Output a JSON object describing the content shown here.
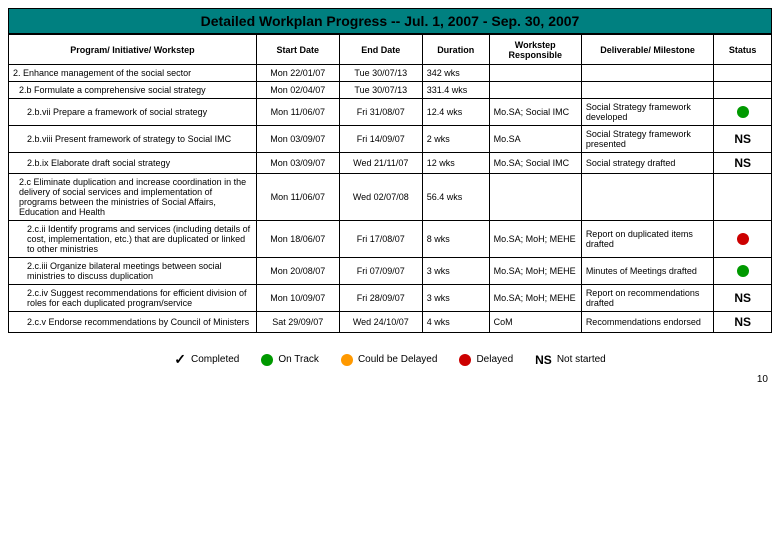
{
  "title": "Detailed Workplan Progress -- Jul. 1, 2007 - Sep. 30, 2007",
  "columns": {
    "program": "Program/ Initiative/ Workstep",
    "start": "Start Date",
    "end": "End Date",
    "duration": "Duration",
    "responsible": "Workstep Responsible",
    "deliverable": "Deliverable/ Milestone",
    "status": "Status"
  },
  "status_colors": {
    "green": "#009900",
    "orange": "#ff9900",
    "red": "#cc0000"
  },
  "rows": [
    {
      "program": "2. Enhance management of the social sector",
      "indent": 0,
      "start": "Mon 22/01/07",
      "end": "Tue 30/07/13",
      "duration": "342 wks",
      "responsible": "",
      "deliverable": "",
      "status_type": ""
    },
    {
      "program": "2.b Formulate a comprehensive social strategy",
      "indent": 1,
      "start": "Mon 02/04/07",
      "end": "Tue 30/07/13",
      "duration": "331.4 wks",
      "responsible": "",
      "deliverable": "",
      "status_type": ""
    },
    {
      "program": "2.b.vii Prepare a framework of social strategy",
      "indent": 2,
      "start": "Mon 11/06/07",
      "end": "Fri 31/08/07",
      "duration": "12.4 wks",
      "responsible": "Mo.SA; Social IMC",
      "deliverable": "Social Strategy framework developed",
      "status_type": "green"
    },
    {
      "program": "2.b.viii Present framework of strategy to Social IMC",
      "indent": 2,
      "start": "Mon 03/09/07",
      "end": "Fri 14/09/07",
      "duration": "2 wks",
      "responsible": "Mo.SA",
      "deliverable": "Social Strategy framework presented",
      "status_type": "NS"
    },
    {
      "program": "2.b.ix Elaborate draft social strategy",
      "indent": 2,
      "start": "Mon 03/09/07",
      "end": "Wed 21/11/07",
      "duration": "12 wks",
      "responsible": "Mo.SA; Social IMC",
      "deliverable": "Social strategy drafted",
      "status_type": "NS"
    },
    {
      "program": "2.c Eliminate duplication and increase coordination in the delivery of social services and implementation of programs between the ministries of Social Affairs, Education and Health",
      "indent": 1,
      "start": "Mon 11/06/07",
      "end": "Wed 02/07/08",
      "duration": "56.4 wks",
      "responsible": "",
      "deliverable": "",
      "status_type": ""
    },
    {
      "program": "2.c.ii Identify programs and services (including details of cost, implementation, etc.) that are duplicated or linked to other ministries",
      "indent": 2,
      "start": "Mon 18/06/07",
      "end": "Fri 17/08/07",
      "duration": "8 wks",
      "responsible": "Mo.SA; MoH; MEHE",
      "deliverable": "Report on duplicated items drafted",
      "status_type": "red"
    },
    {
      "program": "2.c.iii Organize bilateral meetings between social ministries to discuss duplication",
      "indent": 2,
      "start": "Mon 20/08/07",
      "end": "Fri 07/09/07",
      "duration": "3 wks",
      "responsible": "Mo.SA; MoH; MEHE",
      "deliverable": "Minutes of Meetings drafted",
      "status_type": "green"
    },
    {
      "program": "2.c.iv Suggest recommendations for efficient division of roles for each duplicated program/service",
      "indent": 2,
      "start": "Mon 10/09/07",
      "end": "Fri 28/09/07",
      "duration": "3 wks",
      "responsible": "Mo.SA; MoH; MEHE",
      "deliverable": "Report on recommendations drafted",
      "status_type": "NS"
    },
    {
      "program": "2.c.v Endorse recommendations by Council of Ministers",
      "indent": 2,
      "start": "Sat 29/09/07",
      "end": "Wed 24/10/07",
      "duration": "4 wks",
      "responsible": "CoM",
      "deliverable": "Recommendations endorsed",
      "status_type": "NS"
    }
  ],
  "legend": {
    "completed": "Completed",
    "ontrack": "On Track",
    "couldbedelayed": "Could be Delayed",
    "delayed": "Delayed",
    "ns_label": "NS",
    "notstarted": "Not started"
  },
  "page_number": "10"
}
